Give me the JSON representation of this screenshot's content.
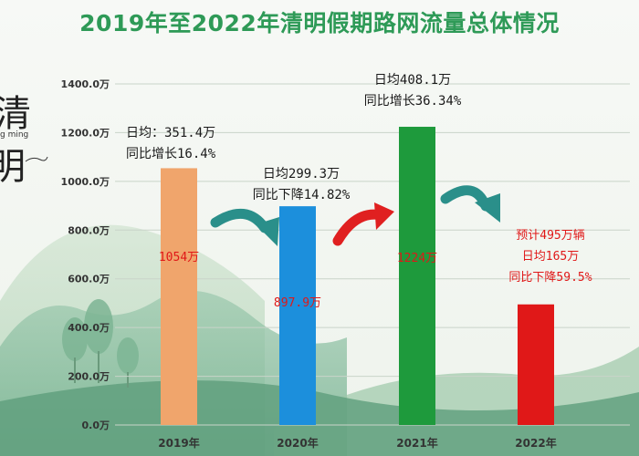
{
  "title": "2019年至2022年清明假期路网流量总体情况",
  "decor": {
    "char1": "清",
    "char2": "明",
    "pinyin": "g ming"
  },
  "colors": {
    "title": "#2e9a57",
    "bars": [
      "#f0a56c",
      "#1c8fdc",
      "#1e9a3c",
      "#e01818"
    ],
    "value_label": "#e01818",
    "annotation": "#1a1a1a",
    "forecast_annotation": "#e01818",
    "arrow_teal": "#2a8f8a",
    "arrow_red": "#e02020"
  },
  "chart_data": {
    "type": "bar",
    "categories": [
      "2019年",
      "2020年",
      "2021年",
      "2022年"
    ],
    "values": [
      1054,
      897.9,
      1224,
      495
    ],
    "value_labels": [
      "1054万",
      "897.9万",
      "1224万",
      ""
    ],
    "ylim": [
      0,
      1400
    ],
    "yticks": [
      0,
      200,
      400,
      600,
      800,
      1000,
      1200,
      1400
    ],
    "ytick_labels": [
      "0.0万",
      "200.0万",
      "400.0万",
      "600.0万",
      "800.0万",
      "1000.0万",
      "1200.0万",
      "1400.0万"
    ],
    "grid": true,
    "annotations": [
      {
        "lines": [
          "日均：351.4万",
          "同比增长16.4%"
        ],
        "style": "normal"
      },
      {
        "lines": [
          "日均299.3万",
          "同比下降14.82%"
        ],
        "style": "normal"
      },
      {
        "lines": [
          "日均408.1万",
          "同比增长36.34%"
        ],
        "style": "normal"
      },
      {
        "lines": [
          "预计495万辆",
          "日均165万",
          "同比下降59.5%"
        ],
        "style": "forecast"
      }
    ]
  }
}
